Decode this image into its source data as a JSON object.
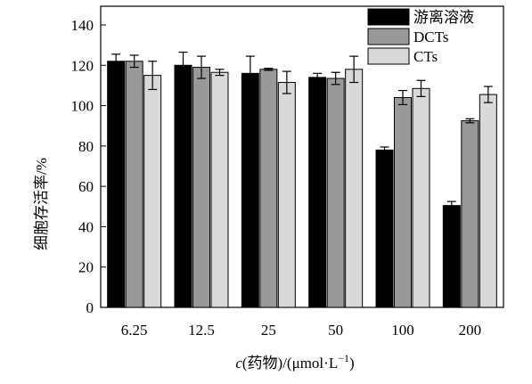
{
  "chart_data": {
    "type": "bar",
    "ylabel": "细胞存活率/%",
    "xlabel_prefix": "c",
    "xlabel_rest": "(药物)/(μmol·L",
    "xlabel_sup": "−1",
    "xlabel_close": ")",
    "ylim": [
      0,
      140
    ],
    "yticks": [
      0,
      20,
      40,
      60,
      80,
      100,
      120,
      140
    ],
    "categories": [
      "6.25",
      "12.5",
      "25",
      "50",
      "100",
      "200"
    ],
    "legend_position": "top-right",
    "grid": false,
    "series": [
      {
        "name": "游离溶液",
        "color": "#000000",
        "values": [
          122,
          120,
          116,
          114,
          78,
          50.5
        ],
        "errors": [
          3.5,
          6.5,
          8.5,
          2,
          1.5,
          2
        ]
      },
      {
        "name": "DCTs",
        "color": "#999999",
        "values": [
          122,
          119,
          118,
          113.5,
          104,
          92.5
        ],
        "errors": [
          3,
          5.5,
          0.5,
          3,
          3.5,
          1
        ]
      },
      {
        "name": "CTs",
        "color": "#d9d9d9",
        "values": [
          115,
          116.5,
          111.5,
          118,
          108.5,
          105.5
        ],
        "errors": [
          7,
          1.5,
          5.5,
          6.5,
          4,
          4
        ]
      }
    ]
  }
}
